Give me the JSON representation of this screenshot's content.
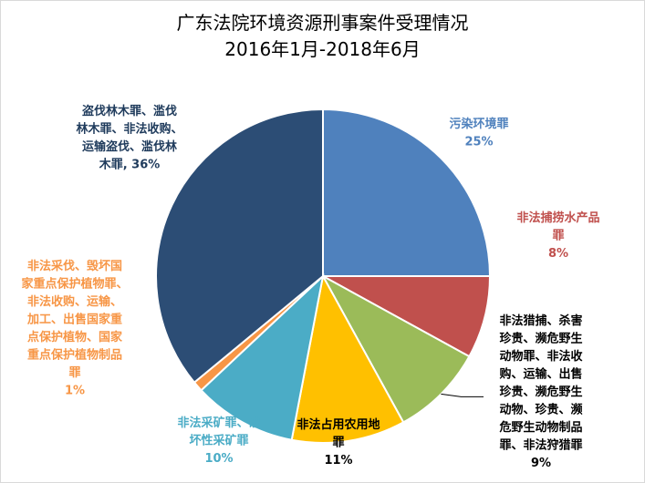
{
  "chart_data": {
    "type": "pie",
    "title": "广东法院环境资源刑事案件受理情况",
    "subtitle": "2016年1月-2018年6月",
    "slices": [
      {
        "name_lines": [
          "污染环境罪"
        ],
        "value": 25,
        "value_label": "25%",
        "color": "#4F81BD"
      },
      {
        "name_lines": [
          "非法捕捞水产品",
          "罪"
        ],
        "value": 8,
        "value_label": "8%",
        "color": "#C0504D"
      },
      {
        "name_lines": [
          "非法猎捕、杀害",
          "珍贵、濒危野生",
          "动物罪、非法收",
          "购、运输、出售",
          "珍贵、濒危野生",
          "动物、珍贵、濒",
          "危野生动物制品",
          "罪、非法狩猎罪"
        ],
        "value": 9,
        "value_label": "9%",
        "color": "#9BBB59"
      },
      {
        "name_lines": [
          "非法占用农用地",
          "罪"
        ],
        "value": 11,
        "value_label": "11%",
        "color": "#FFC000"
      },
      {
        "name_lines": [
          "非法采矿罪、破",
          "坏性采矿罪"
        ],
        "value": 10,
        "value_label": "10%",
        "color": "#4BACC6"
      },
      {
        "name_lines": [
          "非法采伐、毁坏国",
          "家重点保护植物罪、",
          "非法收购、运输、",
          "加工、出售国家重",
          "点保护植物、国家",
          "重点保护植物制品",
          "罪"
        ],
        "value": 1,
        "value_label": "1%",
        "color": "#F79646"
      },
      {
        "name_lines": [
          "盗伐林木罪、滥伐",
          "林木罪、非法收购、",
          "运输盗伐、滥伐林",
          "木罪, 36%"
        ],
        "value": 36,
        "value_label": "",
        "color": "#2C4D75"
      }
    ]
  }
}
